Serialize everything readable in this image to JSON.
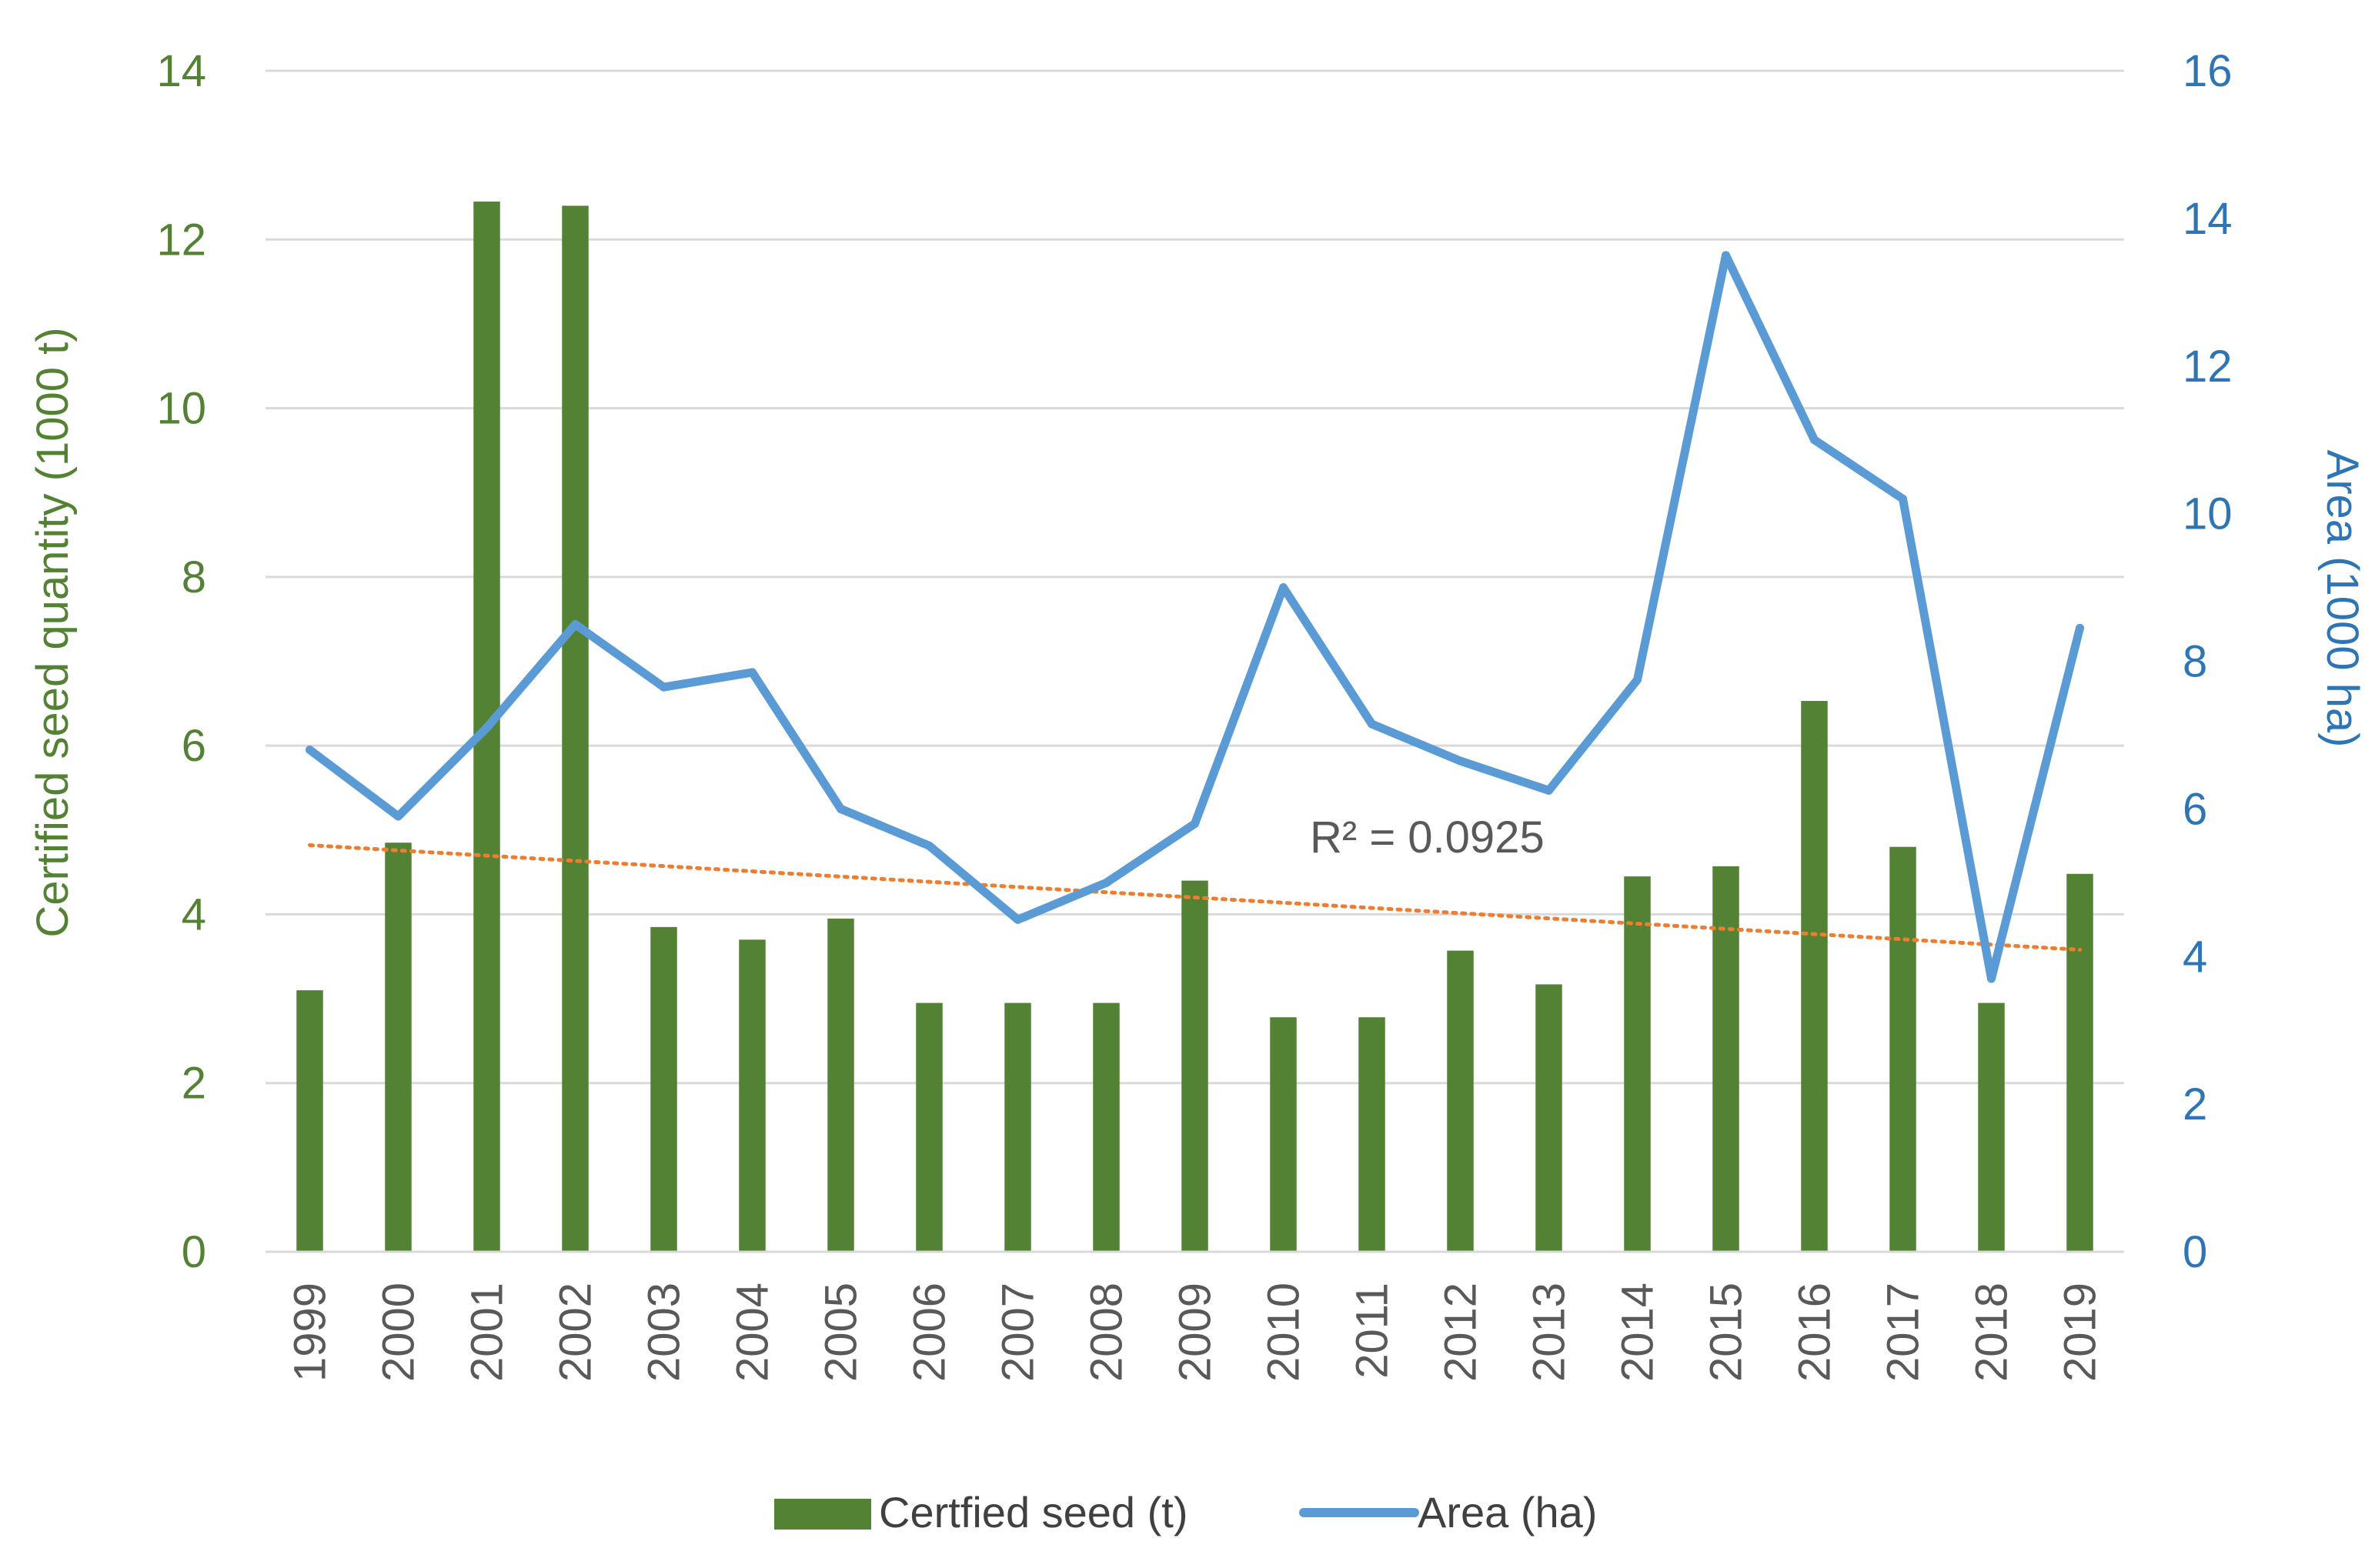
{
  "chart_data": {
    "type": "bar",
    "categories": [
      "1999",
      "2000",
      "2001",
      "2002",
      "2003",
      "2004",
      "2005",
      "2006",
      "2007",
      "2008",
      "2009",
      "2010",
      "2011",
      "2012",
      "2013",
      "2014",
      "2015",
      "2016",
      "2017",
      "2018",
      "2019"
    ],
    "series": [
      {
        "name": "Certfied seed (t)",
        "type": "bar",
        "axis": "left",
        "color": "#548235",
        "values": [
          3.1,
          4.85,
          12.45,
          12.4,
          3.85,
          3.7,
          3.95,
          2.95,
          2.95,
          2.95,
          4.4,
          2.78,
          2.78,
          3.57,
          3.17,
          4.45,
          4.57,
          6.53,
          4.8,
          2.95,
          4.48
        ]
      },
      {
        "name": "Area (ha)",
        "type": "line",
        "axis": "right",
        "color": "#5B9BD5",
        "values": [
          6.8,
          5.9,
          7.1,
          8.5,
          7.65,
          7.85,
          6.0,
          5.5,
          4.5,
          5.0,
          5.8,
          9.0,
          7.15,
          6.65,
          6.25,
          7.75,
          13.5,
          11.0,
          10.2,
          3.7,
          8.45
        ]
      }
    ],
    "trendline": {
      "type": "linear",
      "color": "#ED7D31",
      "style": "dotted",
      "start": 4.82,
      "end": 3.58,
      "label": "R² = 0.0925"
    },
    "y_left": {
      "label": "Certified seed quantity (1000 t)",
      "range": [
        0,
        14
      ],
      "ticks": [
        "0",
        "2",
        "4",
        "6",
        "8",
        "10",
        "12",
        "14"
      ],
      "color": "#548235"
    },
    "y_right": {
      "label": "Area (1000 ha)",
      "range": [
        0,
        16
      ],
      "ticks": [
        "0",
        "2",
        "4",
        "6",
        "8",
        "10",
        "12",
        "14",
        "16"
      ],
      "color": "#2E75B6"
    },
    "grid": true,
    "legend_position": "bottom"
  }
}
